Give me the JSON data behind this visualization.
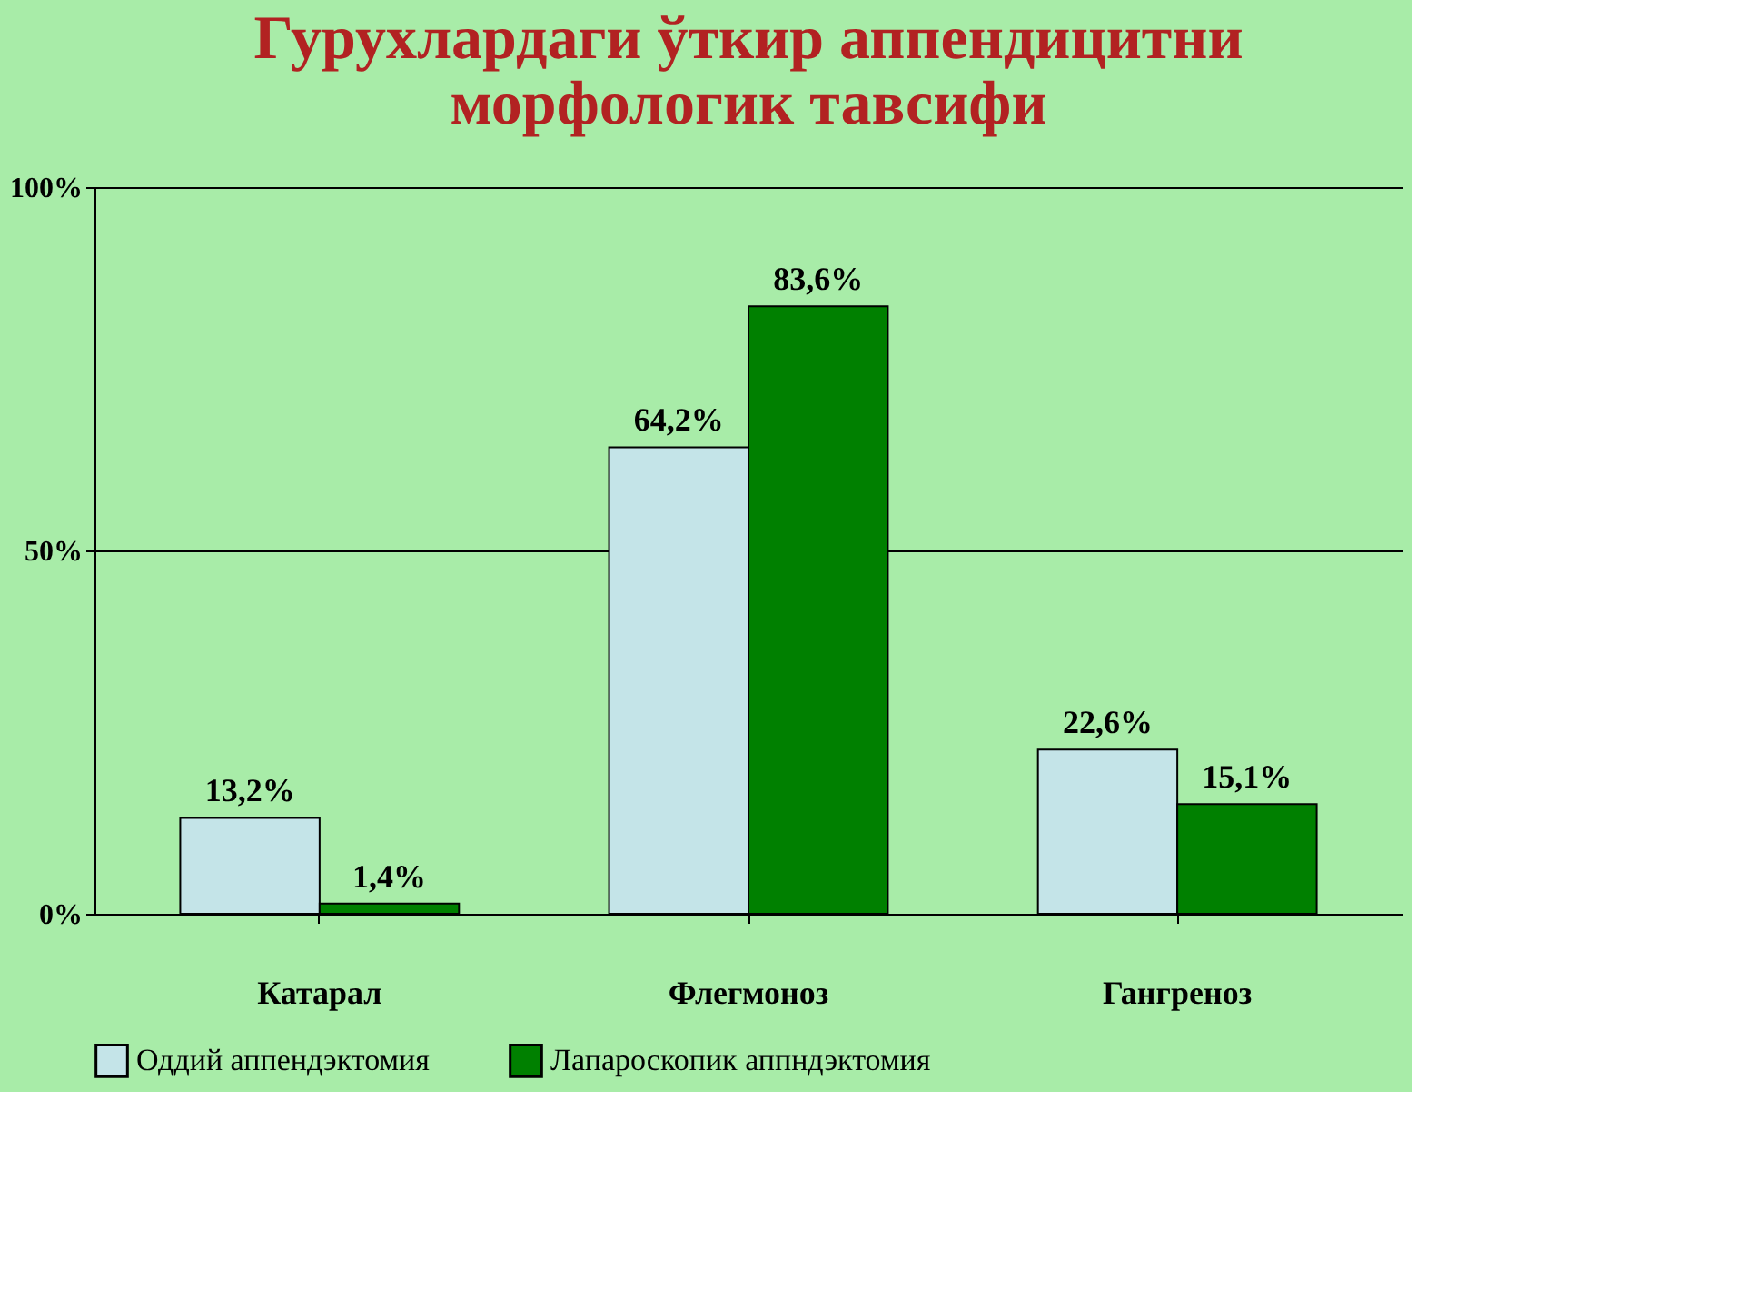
{
  "chart_data": {
    "type": "bar",
    "title": "Гурухлардаги ўткир аппендицитни морфологик тавсифи",
    "categories": [
      "Катарал",
      "Флегмоноз",
      "Гангреноз"
    ],
    "series": [
      {
        "name": "Оддий аппендэктомия",
        "color": "#c4e4e8",
        "values": [
          13.2,
          64.2,
          22.6
        ],
        "value_labels": [
          "13,2%",
          "64,2%",
          "22,6%"
        ]
      },
      {
        "name": "Лапароскопик аппндэктомия",
        "color": "#008000",
        "values": [
          1.4,
          83.6,
          15.1
        ],
        "value_labels": [
          "1,4%",
          "83,6%",
          "15,1%"
        ]
      }
    ],
    "ylim": [
      0,
      100
    ],
    "yticks": [
      {
        "value": 0,
        "label": "0%"
      },
      {
        "value": 50,
        "label": "50%"
      },
      {
        "value": 100,
        "label": "100%"
      }
    ],
    "grid": "y",
    "legend": "bottom"
  }
}
